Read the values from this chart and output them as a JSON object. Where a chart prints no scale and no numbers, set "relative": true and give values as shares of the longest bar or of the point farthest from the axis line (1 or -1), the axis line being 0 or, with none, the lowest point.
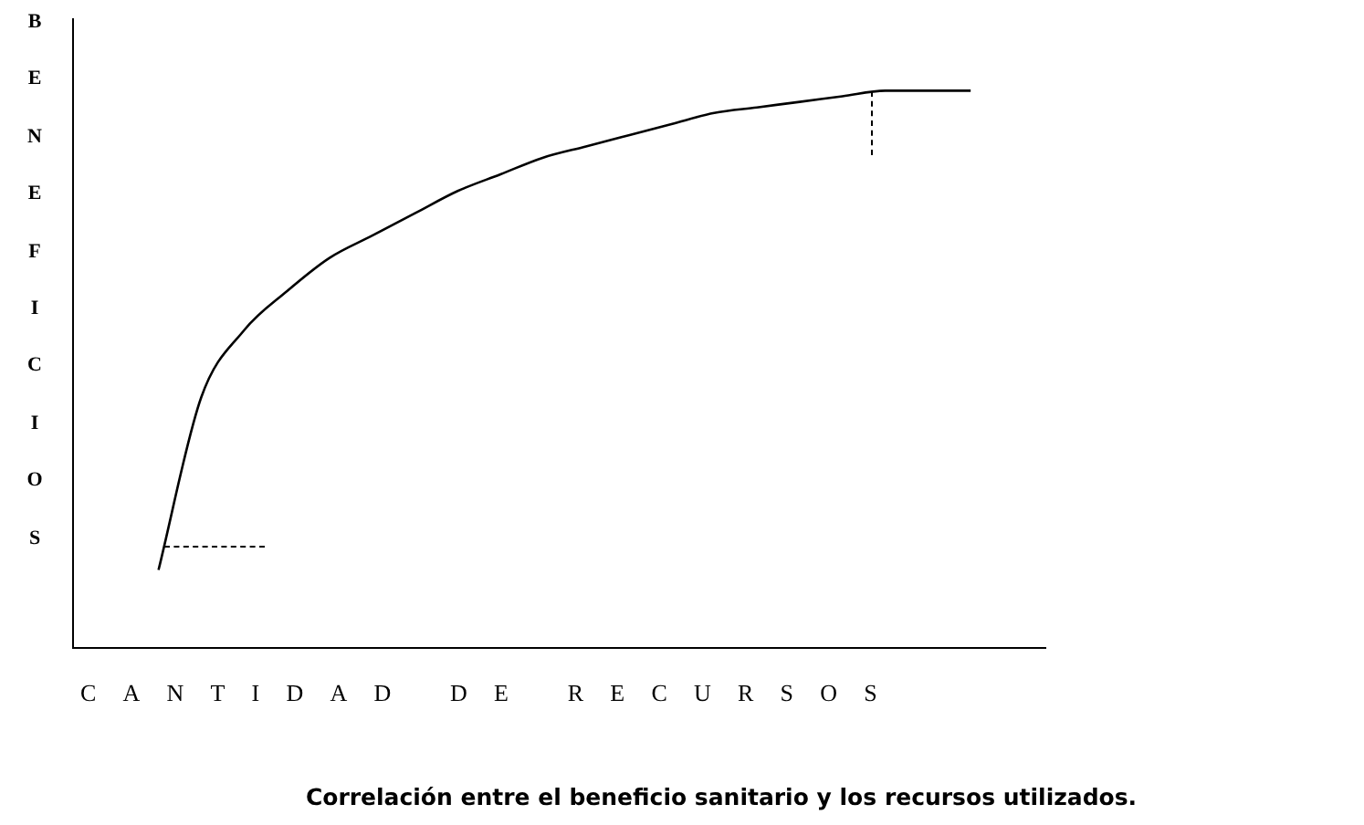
{
  "chart_data": {
    "type": "line",
    "relative": true,
    "ylabel": "BENEFICIOS",
    "xlabel": "CANTIDAD DE RECURSOS",
    "annotations": [
      "Correlación entre el beneficio sanitario y los recursos utilizados."
    ],
    "categories": [
      null,
      null,
      null,
      null,
      null,
      null,
      null,
      null,
      null,
      null,
      null,
      null,
      null,
      null,
      null,
      null,
      null,
      null,
      null,
      null,
      null,
      null,
      null
    ],
    "series": [
      {
        "color": "#000000",
        "values": [
          null,
          null,
          0.14,
          0.45,
          0.57,
          0.64,
          0.7,
          0.74,
          0.78,
          0.82,
          0.85,
          0.88,
          0.9,
          0.92,
          0.94,
          0.96,
          0.97,
          0.98,
          0.99,
          1,
          1,
          1,
          null
        ]
      }
    ],
    "marker": "none",
    "line_style": "solid",
    "legend": false
  }
}
